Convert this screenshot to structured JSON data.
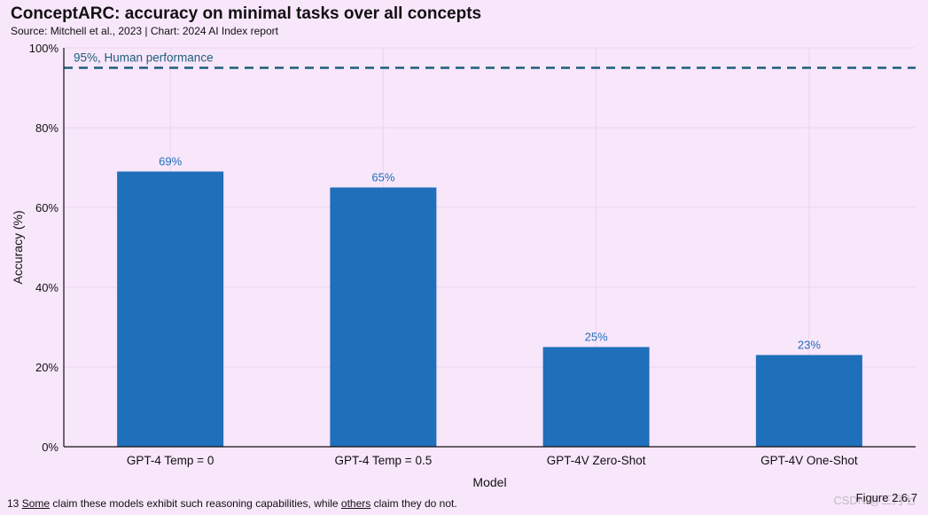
{
  "header": {
    "title": "ConceptARC: accuracy on minimal tasks over all concepts",
    "subtitle": "Source: Mitchell et al., 2023 | Chart: 2024 AI Index report"
  },
  "chart_data": {
    "type": "bar",
    "categories": [
      "GPT-4 Temp = 0",
      "GPT-4 Temp = 0.5",
      "GPT-4V Zero-Shot",
      "GPT-4V One-Shot"
    ],
    "values": [
      69,
      65,
      25,
      23
    ],
    "value_labels": [
      "69%",
      "65%",
      "25%",
      "23%"
    ],
    "xlabel": "Model",
    "ylabel": "Accuracy (%)",
    "ylim": [
      0,
      100
    ],
    "yticks": [
      0,
      20,
      40,
      60,
      80,
      100
    ],
    "ytick_labels": [
      "0%",
      "20%",
      "40%",
      "60%",
      "80%",
      "100%"
    ],
    "grid": true,
    "bar_color": "#1f6fba",
    "reference_line": {
      "value": 95,
      "label": "95%, Human performance",
      "color": "#1d5f78"
    }
  },
  "footer": {
    "footnote_number": "13",
    "footnote_word_1": "Some",
    "footnote_mid": "claim these models exhibit such reasoning capabilities, while",
    "footnote_word_2": "others",
    "footnote_end": "claim they do not.",
    "figure_label": "Figure 2.6.7",
    "watermark": "CSDN @三月七"
  }
}
